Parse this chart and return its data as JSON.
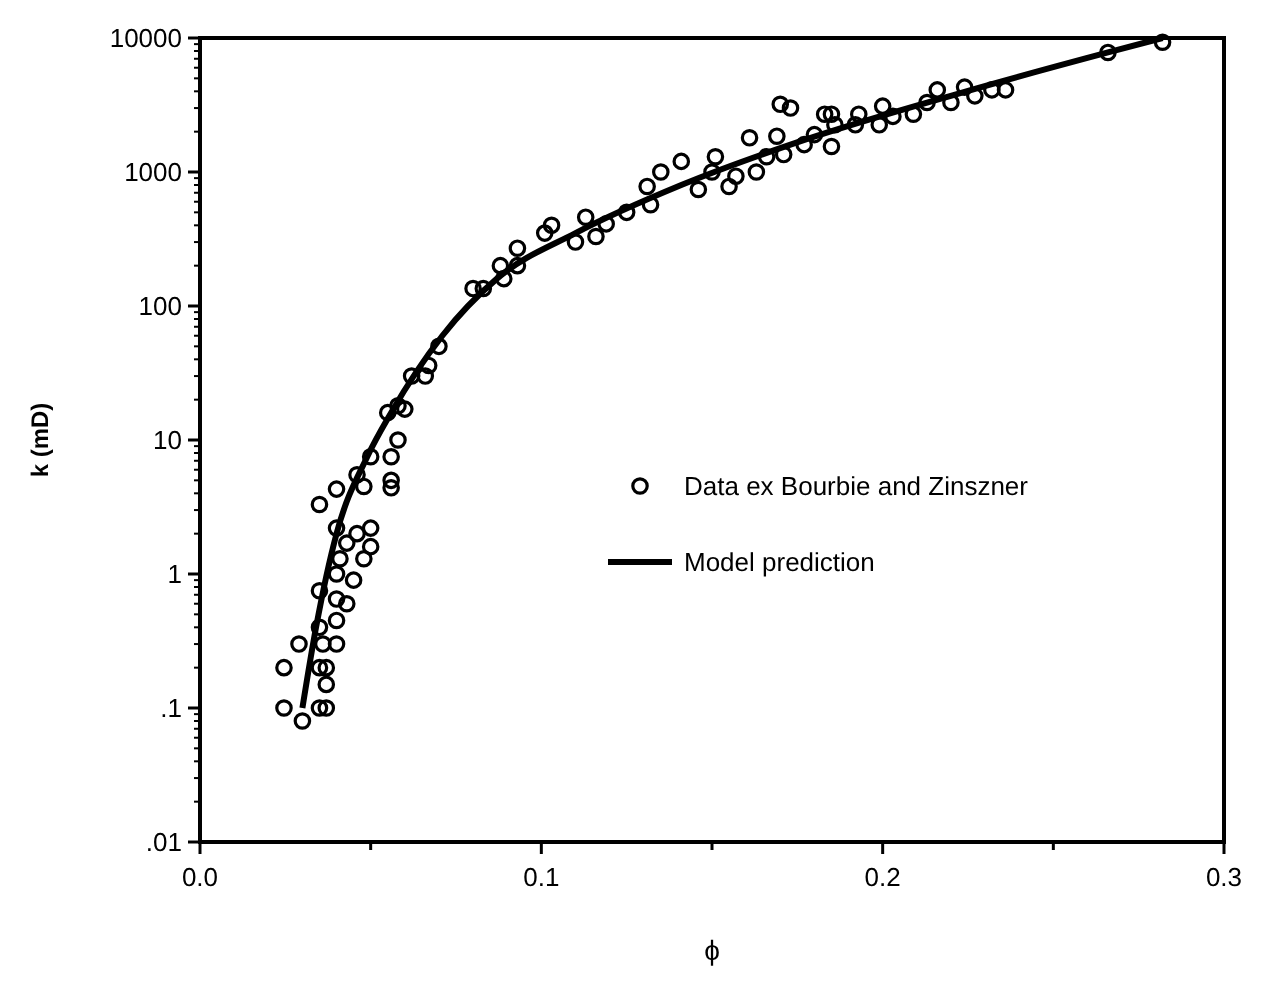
{
  "chart_data": {
    "type": "scatter",
    "xlabel": "ϕ",
    "ylabel": "k  (mD)",
    "log": "y",
    "legend": "right",
    "grid": false,
    "xlim": [
      0,
      0.3
    ],
    "xticks": [
      {
        "value": 0,
        "label": "0.0"
      },
      {
        "value": 0.05,
        "label": null
      },
      0.1,
      {
        "value": 0.15,
        "label": null
      },
      0.2,
      {
        "value": 0.25,
        "label": null
      },
      0.3
    ],
    "ylim": [
      0.01,
      10000
    ],
    "yticks": [
      {
        "value": 0.01,
        "label": ".01"
      },
      {
        "value": 0.1,
        "label": ".1"
      },
      1,
      10,
      100,
      1000,
      10000
    ],
    "series": [
      {
        "name": "Data ex Bourbie and Zinszner",
        "marker": "circle",
        "color": "#000000",
        "x": [
          0.0246,
          0.0246,
          0.03,
          0.029,
          0.035,
          0.037,
          0.037,
          0.035,
          0.037,
          0.035,
          0.035,
          0.036,
          0.04,
          0.04,
          0.04,
          0.04,
          0.041,
          0.043,
          0.043,
          0.045,
          0.046,
          0.048,
          0.05,
          0.05,
          0.04,
          0.035,
          0.04,
          0.046,
          0.048,
          0.05,
          0.056,
          0.056,
          0.056,
          0.058,
          0.055,
          0.058,
          0.06,
          0.062,
          0.066,
          0.067,
          0.07,
          0.08,
          0.083,
          0.088,
          0.089,
          0.093,
          0.093,
          0.101,
          0.103,
          0.11,
          0.113,
          0.116,
          0.119,
          0.125,
          0.131,
          0.132,
          0.135,
          0.141,
          0.146,
          0.151,
          0.15,
          0.155,
          0.157,
          0.161,
          0.163,
          0.166,
          0.169,
          0.17,
          0.173,
          0.171,
          0.177,
          0.18,
          0.185,
          0.185,
          0.183,
          0.186,
          0.192,
          0.193,
          0.199,
          0.2,
          0.203,
          0.209,
          0.213,
          0.216,
          0.22,
          0.224,
          0.227,
          0.232,
          0.236,
          0.266,
          0.282
        ],
        "values": [
          0.2,
          0.1,
          0.08,
          0.3,
          0.2,
          0.2,
          0.15,
          0.1,
          0.1,
          0.4,
          0.75,
          0.3,
          0.3,
          0.45,
          0.65,
          1,
          1.3,
          1.7,
          0.6,
          0.9,
          2,
          1.3,
          1.6,
          2.2,
          2.2,
          3.3,
          4.3,
          5.5,
          4.5,
          7.5,
          5,
          4.4,
          7.5,
          10,
          16,
          18,
          17,
          30,
          30,
          36,
          50,
          135,
          135,
          200,
          160,
          270,
          200,
          350,
          400,
          300,
          460,
          330,
          410,
          500,
          780,
          570,
          1000,
          1200,
          740,
          1300,
          1000,
          780,
          930,
          1800,
          1000,
          1300,
          1850,
          3200,
          3000,
          1350,
          1600,
          1900,
          1550,
          2700,
          2700,
          2250,
          2250,
          2700,
          2250,
          3100,
          2600,
          2700,
          3300,
          4100,
          3300,
          4300,
          3700,
          4100,
          4100,
          7800,
          9300
        ]
      },
      {
        "name": "Model prediction",
        "type": "line",
        "marker": "none",
        "line_style": "solid",
        "color": "#000000",
        "x": [
          0.03,
          0.034,
          0.04,
          0.049,
          0.056,
          0.071,
          0.087,
          0.11,
          0.141,
          0.176,
          0.223,
          0.266,
          0.282
        ],
        "values": [
          0.1,
          0.4,
          2,
          7.5,
          16,
          60,
          160,
          350,
          800,
          1700,
          3900,
          7800,
          10000
        ]
      }
    ]
  }
}
